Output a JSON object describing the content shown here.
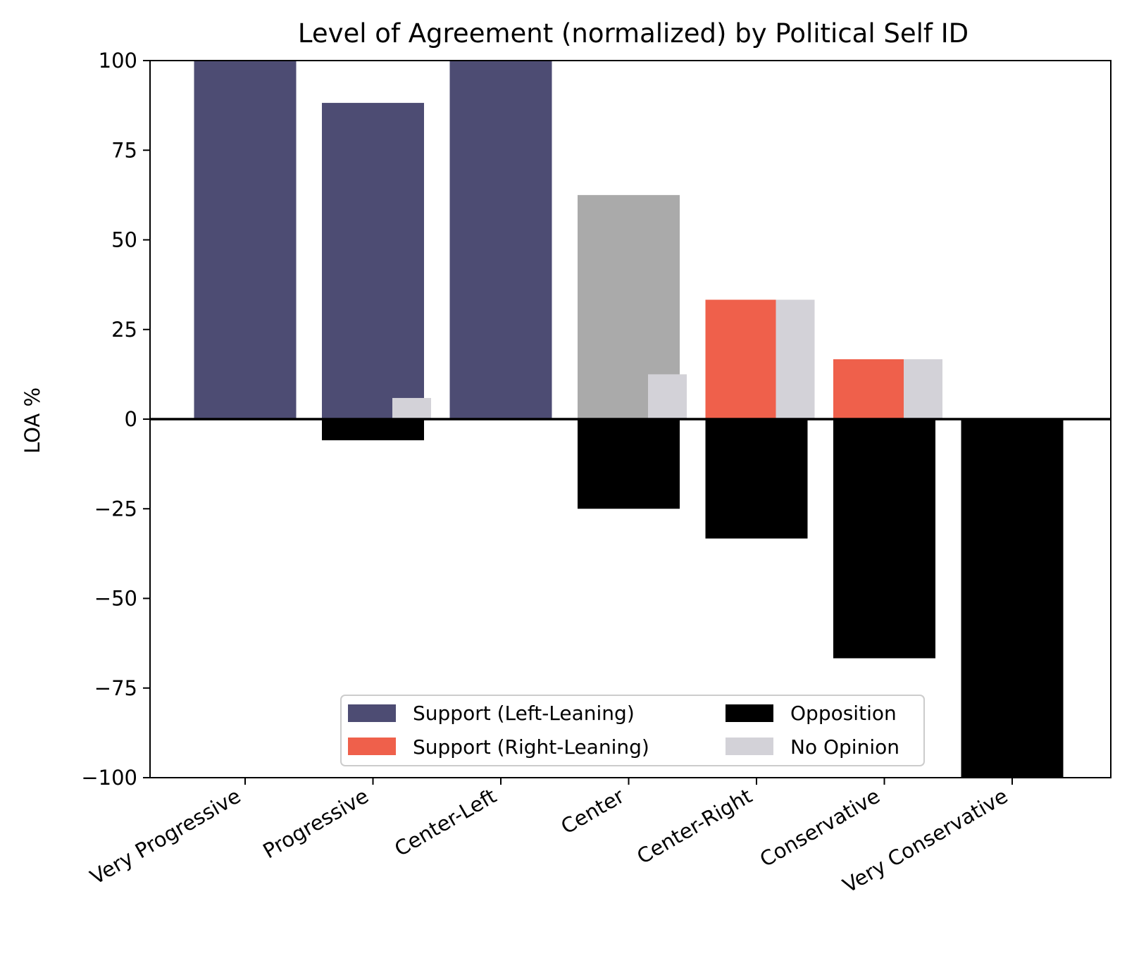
{
  "chart_data": {
    "type": "bar",
    "title": "Level of Agreement (normalized) by Political Self ID",
    "xlabel": "",
    "ylabel": "LOA %",
    "ylim": [
      -100,
      100
    ],
    "yticks": [
      100,
      75,
      50,
      25,
      0,
      -25,
      -50,
      -75,
      -100
    ],
    "ytick_labels": [
      "100",
      "75",
      "50",
      "25",
      "0",
      "−25",
      "−50",
      "−75",
      "−100"
    ],
    "categories": [
      "Very Progressive",
      "Progressive",
      "Center-Left",
      "Center",
      "Center-Right",
      "Conservative",
      "Very Conservative"
    ],
    "support": [
      100,
      88.2,
      100,
      62.5,
      33.3,
      16.7,
      0
    ],
    "support_kind": [
      "left",
      "left",
      "left",
      "center",
      "right",
      "right",
      "right"
    ],
    "opposition": [
      0,
      -5.9,
      0,
      -25,
      -33.3,
      -66.7,
      -100
    ],
    "no_opinion": [
      0,
      5.9,
      0,
      12.5,
      33.3,
      16.7,
      0
    ],
    "colors": {
      "support_left": "#4d4c73",
      "support_right": "#ef604b",
      "support_center": "#aaaaaa",
      "opposition": "#000000",
      "no_opinion": "#d3d2d8"
    },
    "legend": {
      "placement": "lower-center",
      "entries": [
        {
          "label": "Support (Left-Leaning)",
          "color": "#4d4c73"
        },
        {
          "label": "Support (Right-Leaning)",
          "color": "#ef604b"
        },
        {
          "label": "Opposition",
          "color": "#000000"
        },
        {
          "label": "No Opinion",
          "color": "#d3d2d8"
        }
      ]
    }
  }
}
